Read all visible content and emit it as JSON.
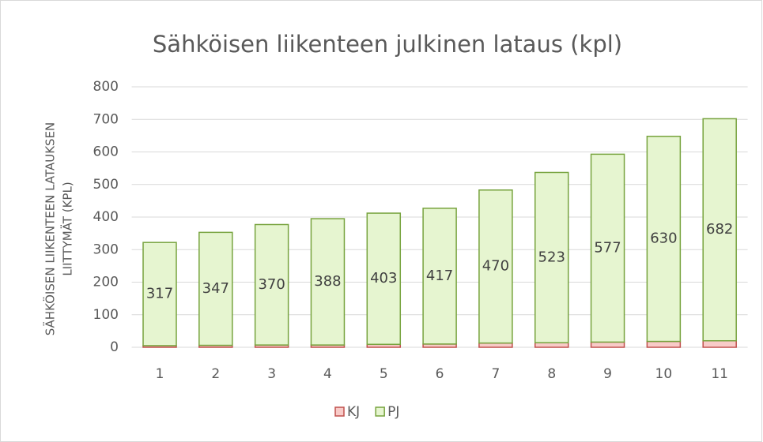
{
  "chart_data": {
    "type": "stacked_bar",
    "title": "Sähköisen liikenteen julkinen lataus (kpl)",
    "y_label": [
      "SÄHKÖISEN LIIKENTEEN LATAUKSEN",
      "LIITTYMÄT (KPL)"
    ],
    "categories": [
      "1",
      "2",
      "3",
      "4",
      "5",
      "6",
      "7",
      "8",
      "9",
      "10",
      "11"
    ],
    "series": [
      {
        "name": "KJ",
        "color": "#f8cbc8",
        "edge": "#c0504d",
        "values": [
          5,
          6,
          7,
          7,
          9,
          10,
          13,
          14,
          16,
          18,
          20
        ]
      },
      {
        "name": "PJ",
        "color": "#e6f5d0",
        "edge": "#77a33e",
        "values": [
          317,
          347,
          370,
          388,
          403,
          417,
          470,
          523,
          577,
          630,
          682
        ]
      }
    ],
    "ylim": [
      0,
      800
    ],
    "yticks": [
      0,
      100,
      200,
      300,
      400,
      500,
      600,
      700,
      800
    ],
    "grid": true,
    "legend": "bottom"
  }
}
